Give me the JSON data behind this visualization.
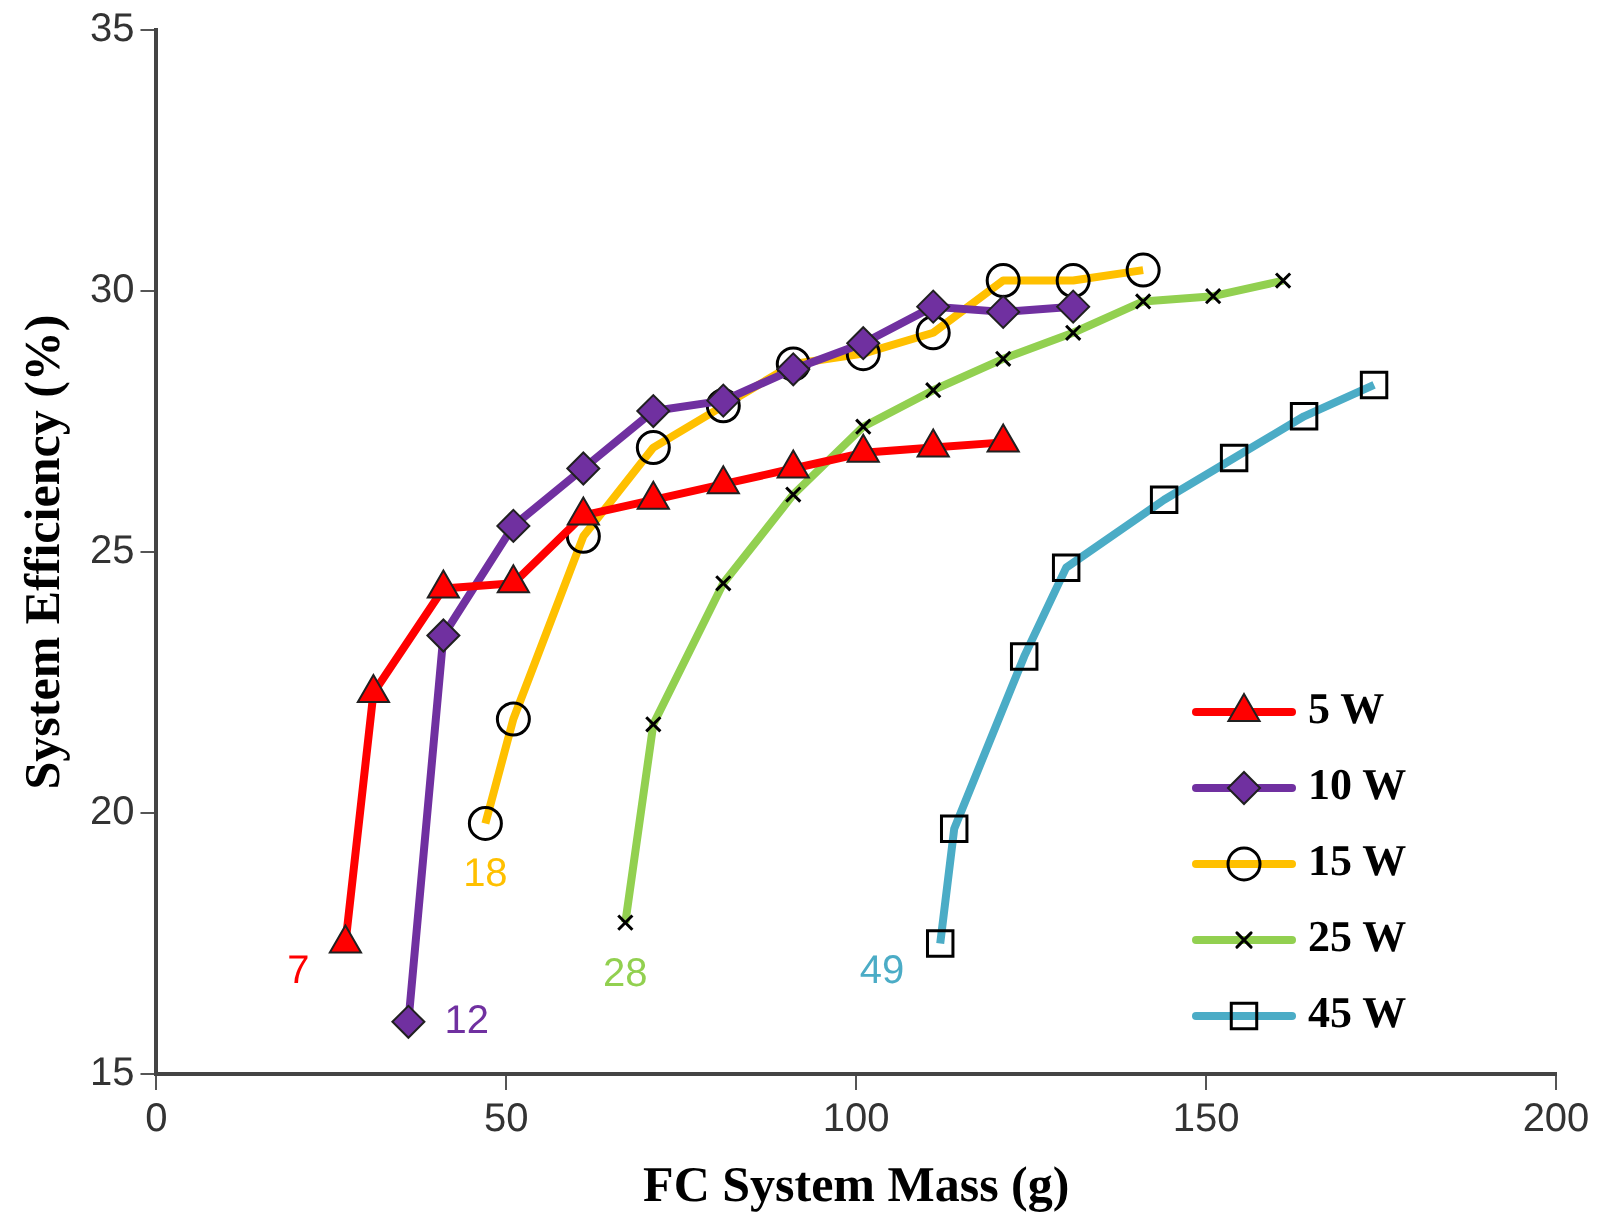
{
  "chart_data": {
    "type": "line",
    "xlabel": "FC System Mass (g)",
    "ylabel": "System Efficiency (%)",
    "xlim": [
      0,
      200
    ],
    "xticks": [
      0,
      50,
      100,
      150,
      200
    ],
    "ylim": [
      15,
      35
    ],
    "yticks": [
      15,
      20,
      25,
      30,
      35
    ],
    "grid": false,
    "legend": "bottom right",
    "series": [
      {
        "name": "5 W",
        "color": "#ff0000",
        "marker": "triangle",
        "x": [
          27,
          31,
          41,
          51,
          61,
          71,
          81,
          91,
          101,
          111,
          121
        ],
        "values": [
          17.5,
          22.3,
          24.3,
          24.4,
          25.7,
          26,
          26.3,
          26.6,
          26.9,
          27,
          27.1
        ]
      },
      {
        "name": "10 W",
        "color": "#7030a0",
        "marker": "diamond",
        "x": [
          36,
          41,
          51,
          61,
          71,
          81,
          91,
          101,
          111,
          121,
          131
        ],
        "values": [
          16,
          23.4,
          25.5,
          26.6,
          27.7,
          27.9,
          28.5,
          29,
          29.7,
          29.6,
          29.7
        ]
      },
      {
        "name": "15 W",
        "color": "#ffc000",
        "marker": "circle",
        "x": [
          47,
          51,
          61,
          71,
          81,
          91,
          101,
          111,
          121,
          131,
          141
        ],
        "values": [
          19.8,
          21.8,
          25.3,
          27,
          27.8,
          28.6,
          28.8,
          29.2,
          30.2,
          30.2,
          30.4
        ]
      },
      {
        "name": "25 W",
        "color": "#92d050",
        "marker": "cross",
        "x": [
          67,
          71,
          81,
          91,
          101,
          111,
          121,
          131,
          141,
          151,
          161
        ],
        "values": [
          17.9,
          21.7,
          24.4,
          26.1,
          27.4,
          28.1,
          28.7,
          29.2,
          29.8,
          29.9,
          30.2
        ]
      },
      {
        "name": "45 W",
        "color": "#4bacc6",
        "marker": "square",
        "x": [
          112,
          114,
          124,
          130,
          144,
          154,
          164,
          174
        ],
        "values": [
          17.5,
          19.7,
          23,
          24.7,
          26,
          26.8,
          27.6,
          28.2
        ]
      }
    ],
    "annotations": [
      {
        "text": "7",
        "x": 27,
        "y": 17.5
      },
      {
        "text": "12",
        "x": 36,
        "y": 16
      },
      {
        "text": "18",
        "x": 47,
        "y": 19.8
      },
      {
        "text": "28",
        "x": 67,
        "y": 17.9
      },
      {
        "text": "49",
        "x": 112,
        "y": 17.5
      }
    ]
  }
}
